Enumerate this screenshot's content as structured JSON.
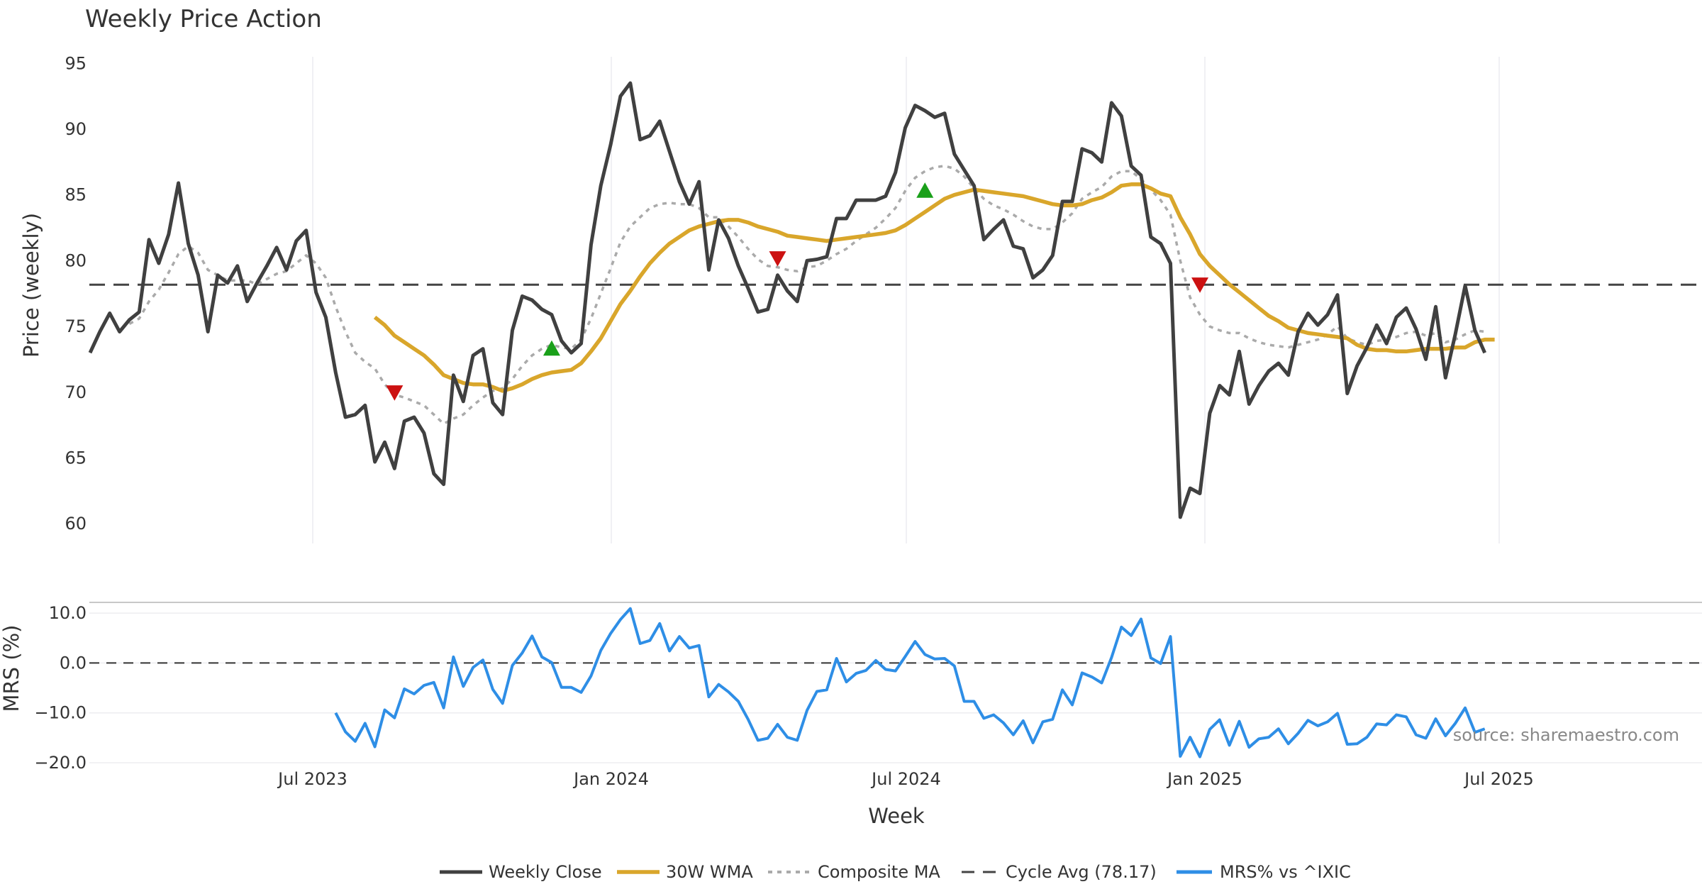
{
  "chart_data": {
    "type": "line",
    "title": "Weekly Price Action",
    "xlabel": "Week",
    "source": "source: sharemaestro.com",
    "x_ticks": [
      "Jul 2023",
      "Jan 2024",
      "Jul 2024",
      "Jan 2025",
      "Jul 2025"
    ],
    "top": {
      "ylabel": "Price (weekly)",
      "ylim": [
        58.5,
        95.5
      ],
      "yticks": [
        "95",
        "90",
        "85",
        "80",
        "75",
        "70",
        "65",
        "60"
      ],
      "cycle_avg": 78.17,
      "series": [
        {
          "name": "Weekly Close",
          "color": "#404040",
          "values": [
            73.0,
            74.6,
            76.0,
            74.6,
            75.5,
            76.1,
            81.6,
            79.8,
            82.0,
            85.9,
            81.3,
            78.9,
            74.6,
            78.9,
            78.3,
            79.6,
            76.9,
            78.3,
            79.6,
            81.0,
            79.3,
            81.5,
            82.3,
            77.6,
            75.7,
            71.5,
            68.1,
            68.3,
            69.0,
            64.7,
            66.2,
            64.2,
            67.8,
            68.1,
            66.9,
            63.8,
            63.0,
            71.3,
            69.3,
            72.8,
            73.3,
            69.2,
            68.3,
            74.7,
            77.3,
            77.0,
            76.3,
            75.9,
            73.9,
            73.0,
            73.7,
            81.2,
            85.7,
            88.8,
            92.5,
            93.5,
            89.2,
            89.5,
            90.6,
            88.3,
            86.0,
            84.3,
            86.0,
            79.3,
            83.1,
            81.7,
            79.6,
            77.9,
            76.1,
            76.3,
            78.9,
            77.7,
            76.9,
            80.0,
            80.1,
            80.3,
            83.2,
            83.2,
            84.6,
            84.6,
            84.6,
            84.9,
            86.7,
            90.1,
            91.8,
            91.4,
            90.9,
            91.2,
            88.1,
            86.9,
            85.7,
            81.6,
            82.4,
            83.1,
            81.1,
            80.9,
            78.7,
            79.3,
            80.4,
            84.5,
            84.5,
            88.5,
            88.2,
            87.5,
            92.0,
            91.0,
            87.2,
            86.5,
            81.8,
            81.3,
            79.8,
            60.5,
            62.7,
            62.3,
            68.4,
            70.5,
            69.8,
            73.1,
            69.1,
            70.5,
            71.6,
            72.2,
            71.3,
            74.6,
            76.0,
            75.1,
            75.9,
            77.4,
            69.9,
            72.0,
            73.4,
            75.1,
            73.7,
            75.7,
            76.4,
            74.8,
            72.5,
            76.5,
            71.1,
            74.4,
            78.1,
            74.7,
            73.0
          ]
        },
        {
          "name": "30W WMA",
          "color": "#d9a62b",
          "values": [
            null,
            null,
            null,
            null,
            null,
            null,
            null,
            null,
            null,
            null,
            null,
            null,
            null,
            null,
            null,
            null,
            null,
            null,
            null,
            null,
            null,
            null,
            null,
            null,
            null,
            null,
            null,
            null,
            null,
            75.7,
            75.1,
            74.3,
            73.8,
            73.3,
            72.8,
            72.1,
            71.3,
            71.0,
            70.7,
            70.6,
            70.6,
            70.4,
            70.1,
            70.3,
            70.6,
            71.0,
            71.3,
            71.5,
            71.6,
            71.7,
            72.2,
            73.1,
            74.1,
            75.4,
            76.7,
            77.7,
            78.8,
            79.8,
            80.6,
            81.3,
            81.8,
            82.3,
            82.6,
            82.8,
            83.0,
            83.1,
            83.1,
            82.9,
            82.6,
            82.4,
            82.2,
            81.9,
            81.8,
            81.7,
            81.6,
            81.5,
            81.6,
            81.7,
            81.8,
            81.9,
            82.0,
            82.1,
            82.3,
            82.7,
            83.2,
            83.7,
            84.2,
            84.7,
            85.0,
            85.2,
            85.4,
            85.3,
            85.2,
            85.1,
            85.0,
            84.9,
            84.7,
            84.5,
            84.3,
            84.2,
            84.2,
            84.3,
            84.6,
            84.8,
            85.2,
            85.7,
            85.8,
            85.8,
            85.5,
            85.1,
            84.9,
            83.3,
            82.0,
            80.5,
            79.6,
            78.9,
            78.2,
            77.6,
            77.0,
            76.4,
            75.8,
            75.4,
            74.9,
            74.7,
            74.5,
            74.4,
            74.3,
            74.2,
            74.1,
            73.6,
            73.3,
            73.2,
            73.2,
            73.1,
            73.1,
            73.2,
            73.3,
            73.3,
            73.3,
            73.4,
            73.4,
            73.8,
            74.0,
            74.0
          ]
        },
        {
          "name": "Composite MA",
          "color": "#aaaaaa",
          "values": [
            null,
            null,
            null,
            null,
            75.2,
            75.6,
            76.9,
            77.8,
            79.1,
            80.5,
            81.1,
            80.6,
            79.3,
            78.9,
            78.5,
            78.5,
            78.5,
            78.2,
            78.6,
            79.0,
            79.2,
            79.8,
            80.4,
            79.8,
            78.7,
            76.5,
            74.6,
            73.0,
            72.3,
            71.8,
            70.6,
            69.8,
            69.6,
            69.3,
            69.0,
            68.3,
            67.6,
            68.0,
            68.3,
            69.0,
            69.6,
            70.1,
            70.3,
            71.0,
            72.0,
            72.8,
            73.3,
            73.6,
            73.4,
            73.3,
            74.0,
            75.6,
            77.5,
            79.4,
            81.4,
            82.6,
            83.3,
            84.0,
            84.3,
            84.4,
            84.3,
            84.3,
            84.0,
            83.3,
            83.3,
            82.6,
            81.8,
            80.9,
            80.1,
            79.6,
            79.5,
            79.3,
            79.2,
            79.5,
            79.6,
            80.0,
            80.5,
            80.9,
            81.5,
            82.0,
            82.5,
            83.2,
            84.0,
            85.3,
            86.3,
            86.8,
            87.1,
            87.2,
            87.0,
            86.4,
            85.5,
            84.7,
            84.2,
            83.9,
            83.5,
            83.0,
            82.6,
            82.4,
            82.4,
            82.9,
            83.6,
            84.7,
            85.2,
            85.6,
            86.4,
            86.8,
            86.8,
            86.2,
            85.4,
            84.6,
            83.5,
            80.0,
            77.2,
            75.9,
            75.0,
            74.7,
            74.5,
            74.5,
            74.1,
            73.8,
            73.6,
            73.5,
            73.4,
            73.6,
            73.8,
            74.0,
            74.4,
            75.0,
            74.1,
            73.8,
            73.6,
            73.9,
            74.0,
            74.2,
            74.5,
            74.6,
            74.3,
            74.5,
            73.8,
            74.0,
            74.4,
            74.7,
            74.6
          ]
        }
      ],
      "signals": [
        {
          "i": 31,
          "value": 70.0,
          "dir": "down"
        },
        {
          "i": 47,
          "value": 73.3,
          "dir": "up"
        },
        {
          "i": 70,
          "value": 80.2,
          "dir": "down"
        },
        {
          "i": 85,
          "value": 85.3,
          "dir": "up"
        },
        {
          "i": 113,
          "value": 78.2,
          "dir": "down"
        }
      ]
    },
    "bottom": {
      "ylabel": "MRS (%)",
      "ylim": [
        -20,
        12
      ],
      "yticks": [
        "10.0",
        "0.0",
        "−10.0",
        "−20.0"
      ],
      "series": [
        {
          "name": "MRS% vs ^IXIC",
          "color": "#2e8ee6",
          "values": [
            null,
            null,
            null,
            null,
            null,
            null,
            null,
            null,
            null,
            null,
            null,
            null,
            null,
            null,
            null,
            null,
            null,
            null,
            null,
            null,
            null,
            null,
            null,
            null,
            null,
            -10.0,
            -13.8,
            -15.7,
            -12.1,
            -16.8,
            -9.4,
            -11.0,
            -5.2,
            -6.2,
            -4.5,
            -3.9,
            -9.0,
            1.2,
            -4.7,
            -0.9,
            0.6,
            -5.3,
            -8.1,
            -0.5,
            2.0,
            5.4,
            1.2,
            0.1,
            -4.9,
            -4.9,
            -5.9,
            -2.6,
            2.5,
            5.9,
            8.7,
            10.9,
            3.9,
            4.5,
            7.9,
            2.4,
            5.3,
            3.0,
            3.5,
            -6.8,
            -4.3,
            -5.8,
            -7.7,
            -11.3,
            -15.5,
            -15.1,
            -12.3,
            -14.9,
            -15.5,
            -9.5,
            -5.7,
            -5.4,
            0.9,
            -3.8,
            -2.1,
            -1.5,
            0.5,
            -1.3,
            -1.6,
            1.3,
            4.3,
            1.7,
            0.8,
            0.9,
            -0.6,
            -7.7,
            -7.7,
            -11.1,
            -10.4,
            -12.0,
            -14.4,
            -11.6,
            -16.0,
            -11.8,
            -11.3,
            -5.4,
            -8.4,
            -2.0,
            -2.8,
            -4.0,
            1.1,
            7.2,
            5.5,
            8.8,
            1.0,
            -0.1,
            5.3,
            -18.7,
            -14.9,
            -18.8,
            -13.3,
            -11.4,
            -16.5,
            -11.7,
            -16.9,
            -15.2,
            -14.9,
            -13.2,
            -16.2,
            -14.1,
            -11.5,
            -12.6,
            -11.8,
            -10.1,
            -16.3,
            -16.2,
            -14.9,
            -12.2,
            -12.4,
            -10.4,
            -10.8,
            -14.4,
            -15.1,
            -11.2,
            -14.6,
            -12.1,
            -9.0,
            -13.9,
            -13.2
          ]
        }
      ]
    },
    "legend": [
      "Weekly Close",
      "30W WMA",
      "Composite MA",
      "Cycle Avg (78.17)",
      "MRS% vs ^IXIC"
    ],
    "colors": {
      "up": "#1aa01a",
      "down": "#cc1111",
      "cycle": "#444444",
      "grid": "#e8e8ec"
    }
  }
}
